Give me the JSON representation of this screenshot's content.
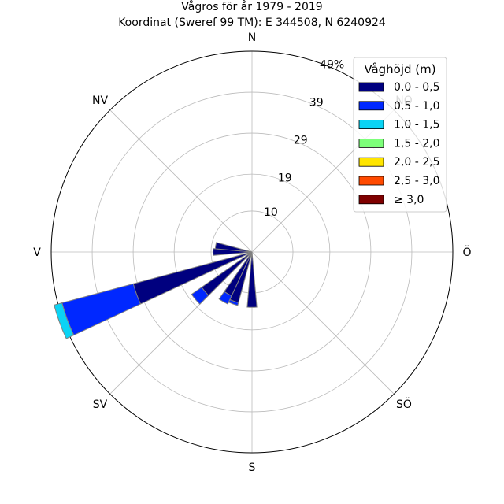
{
  "chart_data": {
    "type": "windrose",
    "title": "Vågros för år 1979 - 2019",
    "subtitle": "Koordinat (Sweref 99 TM): E 344508, N 6240924",
    "directions": [
      "N",
      "NO",
      "Ö",
      "SÖ",
      "S",
      "SV",
      "V",
      "NV"
    ],
    "radial_ticks": [
      "10",
      "19",
      "29",
      "39",
      "49%"
    ],
    "radial_tick_values": [
      10,
      19,
      29,
      39,
      49
    ],
    "rmax": 49,
    "grid": true,
    "legend": {
      "title": "Våghöjd (m)",
      "placement": "top-right",
      "items": [
        {
          "label": "0,0 - 0,5",
          "color": "#00007f"
        },
        {
          "label": "0,5 - 1,0",
          "color": "#0028ff"
        },
        {
          "label": "1,0 - 1,5",
          "color": "#0ad4f5"
        },
        {
          "label": "1,5 - 2,0",
          "color": "#7dff7a"
        },
        {
          "label": "2,0 - 2,5",
          "color": "#ffe500"
        },
        {
          "label": "2,5 - 3,0",
          "color": "#ff4a00"
        },
        {
          "label": "≥ 3,0",
          "color": "#7f0000"
        }
      ]
    },
    "sector_width_deg": 10,
    "sectors": [
      {
        "direction_deg": 180,
        "cumulative": [
          13.5
        ]
      },
      {
        "direction_deg": 200,
        "cumulative": [
          12.8,
          13.5
        ]
      },
      {
        "direction_deg": 210,
        "cumulative": [
          11.8,
          14.0
        ]
      },
      {
        "direction_deg": 230,
        "cumulative": [
          15.0,
          18.0
        ]
      },
      {
        "direction_deg": 250,
        "cumulative": [
          30.0,
          48.0,
          50.0
        ]
      },
      {
        "direction_deg": 270,
        "cumulative": [
          9.5
        ]
      },
      {
        "direction_deg": 280,
        "cumulative": [
          9.0
        ]
      }
    ]
  }
}
